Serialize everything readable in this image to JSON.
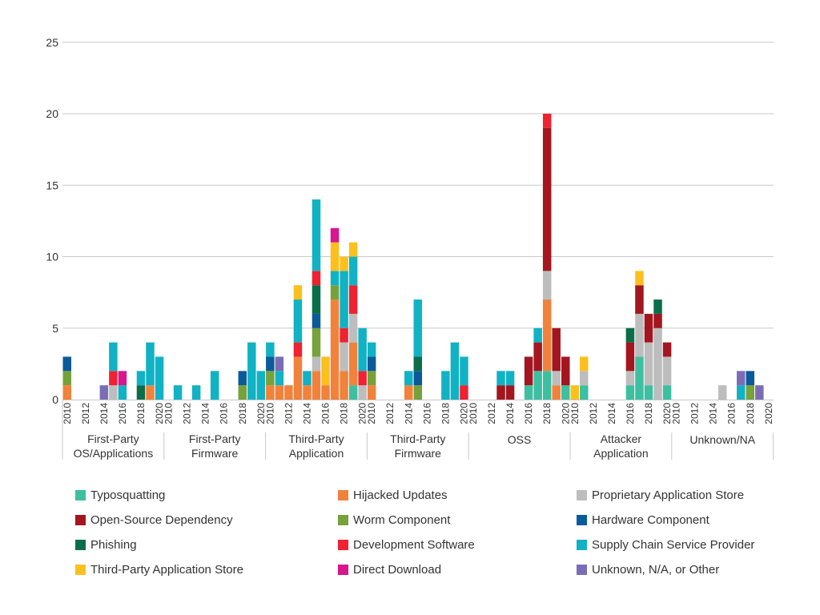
{
  "chart_data": {
    "type": "bar",
    "stacked": true,
    "ylim": [
      0,
      25
    ],
    "yticks": [
      0,
      5,
      10,
      15,
      20,
      25
    ],
    "grid": true,
    "legend_position": "bottom",
    "year_labels": [
      "2010",
      "2012",
      "2014",
      "2016",
      "2018",
      "2020"
    ],
    "categories": [
      {
        "name": "First-Party OS/Applications",
        "label_lines": [
          "First-Party",
          "OS/Applications"
        ]
      },
      {
        "name": "First-Party Firmware",
        "label_lines": [
          "First-Party",
          "Firmware"
        ]
      },
      {
        "name": "Third-Party Application",
        "label_lines": [
          "Third-Party",
          "Application"
        ]
      },
      {
        "name": "Third-Party Firmware",
        "label_lines": [
          "Third-Party",
          "Firmware"
        ]
      },
      {
        "name": "OSS",
        "label_lines": [
          "OSS"
        ]
      },
      {
        "name": "Attacker Application",
        "label_lines": [
          "Attacker",
          "Application"
        ]
      },
      {
        "name": "Unknown/NA",
        "label_lines": [
          "Unknown/NA"
        ]
      }
    ],
    "series": [
      {
        "key": "typo",
        "name": "Typosquatting",
        "color": "#3DBFA0"
      },
      {
        "key": "hijack",
        "name": "Hijacked Updates",
        "color": "#F0823C"
      },
      {
        "key": "prop",
        "name": "Proprietary Application Store",
        "color": "#BDBDBD"
      },
      {
        "key": "oss",
        "name": "Open-Source Dependency",
        "color": "#A3161F"
      },
      {
        "key": "worm",
        "name": "Worm Component",
        "color": "#76A13B"
      },
      {
        "key": "hw",
        "name": "Hardware Component",
        "color": "#0B5A9A"
      },
      {
        "key": "phish",
        "name": "Phishing",
        "color": "#0B6E4B"
      },
      {
        "key": "dev",
        "name": "Development Software",
        "color": "#EE2230"
      },
      {
        "key": "scsp",
        "name": "Supply Chain Service Provider",
        "color": "#11B2C4"
      },
      {
        "key": "tpstore",
        "name": "Third-Party Application Store",
        "color": "#FBC01E"
      },
      {
        "key": "direct",
        "name": "Direct Download",
        "color": "#D8168E"
      },
      {
        "key": "unk",
        "name": "Unknown, N/A, or Other",
        "color": "#7B6DB5"
      }
    ],
    "data": {
      "First-Party OS/Applications": {
        "2010": {
          "hijack": 1,
          "worm": 1,
          "hw": 1
        },
        "2014": {
          "unk": 1
        },
        "2015": {
          "prop": 1,
          "dev": 1,
          "scsp": 2
        },
        "2016": {
          "direct": 1,
          "scsp": 1
        },
        "2018": {
          "phish": 1,
          "scsp": 1
        },
        "2019": {
          "hijack": 1,
          "scsp": 3
        },
        "2020": {
          "scsp": 3
        }
      },
      "First-Party Firmware": {
        "2011": {
          "scsp": 1
        },
        "2013": {
          "scsp": 1
        },
        "2015": {
          "scsp": 2
        },
        "2018": {
          "worm": 1,
          "hw": 1
        },
        "2019": {
          "scsp": 4
        },
        "2020": {
          "scsp": 2
        }
      },
      "Third-Party Application": {
        "2010": {
          "hijack": 1,
          "worm": 1,
          "hw": 1,
          "scsp": 1
        },
        "2011": {
          "hijack": 1,
          "scsp": 1,
          "unk": 1
        },
        "2012": {
          "hijack": 1
        },
        "2013": {
          "hijack": 3,
          "tpstore": 1,
          "dev": 1,
          "scsp": 3
        },
        "2014": {
          "hijack": 1,
          "scsp": 1
        },
        "2015": {
          "hijack": 2,
          "prop": 1,
          "worm": 2,
          "phish": 2,
          "hw": 1,
          "dev": 1,
          "scsp": 5
        },
        "2016": {
          "hijack": 1,
          "tpstore": 2
        },
        "2017": {
          "hijack": 7,
          "tpstore": 2,
          "worm": 1,
          "direct": 1,
          "scsp": 1
        },
        "2018": {
          "hijack": 2,
          "prop": 2,
          "tpstore": 1,
          "dev": 1,
          "scsp": 4
        },
        "2019": {
          "typo": 1,
          "hijack": 3,
          "prop": 2,
          "tpstore": 1,
          "dev": 2,
          "scsp": 2
        },
        "2020": {
          "prop": 1,
          "dev": 1,
          "scsp": 3
        }
      },
      "Third-Party Firmware": {
        "2010": {
          "hijack": 1,
          "worm": 1,
          "hw": 1,
          "scsp": 1
        },
        "2014": {
          "hijack": 1,
          "scsp": 1
        },
        "2015": {
          "worm": 1,
          "hw": 1,
          "phish": 1,
          "scsp": 4
        },
        "2018": {
          "scsp": 2
        },
        "2019": {
          "scsp": 4
        },
        "2020": {
          "dev": 1,
          "scsp": 2
        }
      },
      "OSS": {
        "2013": {
          "oss": 1,
          "scsp": 1
        },
        "2014": {
          "oss": 1,
          "scsp": 1
        },
        "2016": {
          "typo": 1,
          "oss": 2
        },
        "2017": {
          "typo": 2,
          "oss": 2,
          "scsp": 1
        },
        "2018": {
          "typo": 2,
          "hijack": 5,
          "prop": 2,
          "oss": 10,
          "dev": 1
        },
        "2019": {
          "hijack": 1,
          "prop": 1,
          "oss": 3
        },
        "2020": {
          "typo": 1,
          "oss": 2
        }
      },
      "Attacker Application": {
        "2010": {
          "tpstore": 1
        },
        "2011": {
          "typo": 1,
          "prop": 1,
          "tpstore": 1
        },
        "2016": {
          "typo": 1,
          "prop": 1,
          "oss": 2,
          "phish": 1
        },
        "2017": {
          "typo": 3,
          "prop": 3,
          "tpstore": 1,
          "oss": 2
        },
        "2018": {
          "typo": 1,
          "prop": 3,
          "oss": 2
        },
        "2019": {
          "prop": 5,
          "oss": 1,
          "phish": 1
        },
        "2020": {
          "typo": 1,
          "prop": 2,
          "oss": 1
        }
      },
      "Unknown/NA": {
        "2015": {
          "prop": 1
        },
        "2017": {
          "scsp": 1,
          "unk": 1
        },
        "2018": {
          "worm": 1,
          "hw": 1
        },
        "2019": {
          "unk": 1
        }
      }
    }
  }
}
